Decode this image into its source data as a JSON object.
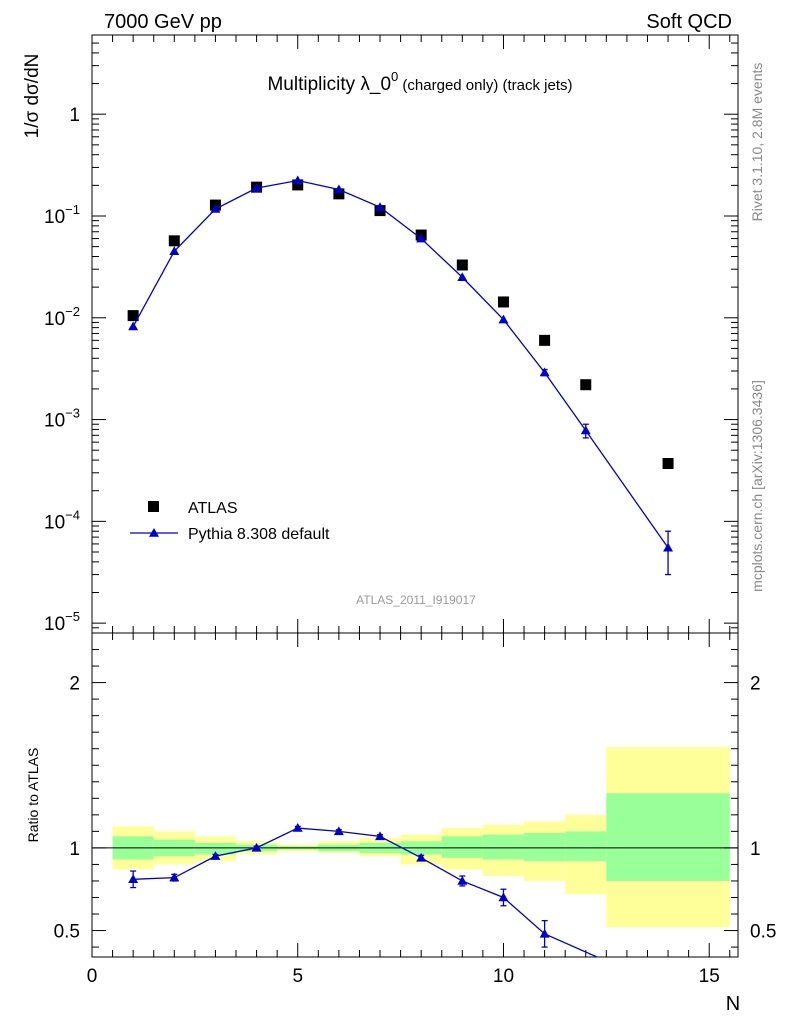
{
  "header": {
    "left": "7000 GeV pp",
    "right": "Soft QCD"
  },
  "side_labels": {
    "rivet": "Rivet 3.1.10,  2.8M events",
    "mcplots": "mcplots.cern.ch [arXiv:1306.3436]"
  },
  "chart_data": {
    "type": "scatter",
    "title": "Multiplicity λ_0⁰ (charged only) (track jets)",
    "watermark": "ATLAS_2011_I919017",
    "xlabel": "N",
    "ylabel": "1/σ dσ/dN",
    "ratio_ylabel": "Ratio to ATLAS",
    "xlim": [
      0,
      15.7
    ],
    "x_ticks": [
      0,
      5,
      10,
      15
    ],
    "main_panel": {
      "yscale": "log",
      "ylim": [
        8e-06,
        6
      ],
      "y_tick_labels": [
        {
          "value": 1,
          "label": "1"
        },
        {
          "value": 0.1,
          "mant": "10",
          "exp": "−1"
        },
        {
          "value": 0.01,
          "mant": "10",
          "exp": "−2"
        },
        {
          "value": 0.001,
          "mant": "10",
          "exp": "−3"
        },
        {
          "value": 0.0001,
          "mant": "10",
          "exp": "−4"
        },
        {
          "value": 1e-05,
          "mant": "10",
          "exp": "−5"
        }
      ]
    },
    "ratio_panel": {
      "yscale": "linear",
      "ylim": [
        0.34,
        2.3
      ],
      "y_ticks": [
        0.5,
        1,
        2
      ]
    },
    "legend": {
      "position": "lower-left",
      "entries": [
        "ATLAS",
        "Pythia 8.308 default"
      ]
    },
    "series": [
      {
        "name": "ATLAS",
        "marker": "square",
        "color": "#000000",
        "x": [
          1,
          2,
          3,
          4,
          5,
          6,
          7,
          8,
          9,
          10,
          11,
          12,
          14
        ],
        "y": [
          0.0105,
          0.057,
          0.128,
          0.192,
          0.202,
          0.165,
          0.113,
          0.065,
          0.033,
          0.0143,
          0.006,
          0.0022,
          0.00037
        ]
      },
      {
        "name": "Pythia 8.308 default",
        "marker": "triangle",
        "color": "#0000cc",
        "x": [
          1,
          2,
          3,
          4,
          5,
          6,
          7,
          8,
          9,
          10,
          11,
          12,
          14
        ],
        "y": [
          0.0082,
          0.045,
          0.117,
          0.188,
          0.223,
          0.182,
          0.122,
          0.06,
          0.025,
          0.0096,
          0.0029,
          0.00078,
          5.5e-05
        ],
        "y_err": [
          0,
          0,
          0,
          0,
          0,
          0,
          0,
          0,
          0,
          0,
          0.0002,
          0.00012,
          2.5e-05
        ]
      }
    ],
    "ratio": {
      "x": [
        1,
        2,
        3,
        4,
        5,
        6,
        7,
        8,
        9,
        10,
        11,
        14
      ],
      "y": [
        0.81,
        0.82,
        0.95,
        1.0,
        1.12,
        1.1,
        1.07,
        0.94,
        0.8,
        0.7,
        0.48,
        0.15
      ],
      "y_err": [
        0.05,
        0.02,
        0.01,
        0.01,
        0.01,
        0.01,
        0.01,
        0.015,
        0.03,
        0.05,
        0.08,
        0
      ]
    },
    "bands": {
      "bins": [
        [
          0.5,
          1.5
        ],
        [
          1.5,
          2.5
        ],
        [
          2.5,
          3.5
        ],
        [
          3.5,
          4.5
        ],
        [
          4.5,
          5.5
        ],
        [
          5.5,
          6.5
        ],
        [
          6.5,
          7.5
        ],
        [
          7.5,
          8.5
        ],
        [
          8.5,
          9.5
        ],
        [
          9.5,
          10.5
        ],
        [
          10.5,
          11.5
        ],
        [
          11.5,
          12.5
        ],
        [
          12.5,
          15.5
        ]
      ],
      "stat_color": "#99ff99",
      "total_color": "#ffff99",
      "inner": [
        [
          0.93,
          1.07
        ],
        [
          0.95,
          1.05
        ],
        [
          0.96,
          1.03
        ],
        [
          0.98,
          1.02
        ],
        [
          0.99,
          1.01
        ],
        [
          0.98,
          1.02
        ],
        [
          0.97,
          1.03
        ],
        [
          0.96,
          1.04
        ],
        [
          0.94,
          1.07
        ],
        [
          0.93,
          1.08
        ],
        [
          0.92,
          1.09
        ],
        [
          0.92,
          1.1
        ],
        [
          0.8,
          1.33
        ]
      ],
      "outer": [
        [
          0.87,
          1.13
        ],
        [
          0.9,
          1.1
        ],
        [
          0.92,
          1.07
        ],
        [
          0.96,
          1.04
        ],
        [
          0.98,
          1.02
        ],
        [
          0.97,
          1.04
        ],
        [
          0.95,
          1.06
        ],
        [
          0.9,
          1.08
        ],
        [
          0.87,
          1.12
        ],
        [
          0.83,
          1.14
        ],
        [
          0.8,
          1.16
        ],
        [
          0.72,
          1.2
        ],
        [
          0.52,
          1.61
        ]
      ]
    }
  }
}
